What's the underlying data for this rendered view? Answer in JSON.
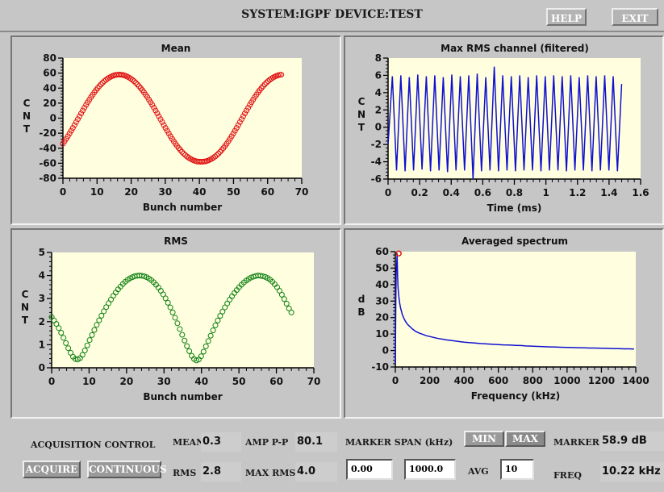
{
  "header": {
    "title": "SYSTEM:IGPF DEVICE:TEST",
    "help_label": "HELP",
    "exit_label": "EXIT"
  },
  "control": {
    "title": "ACQUISITION CONTROL",
    "acquire_label": "ACQUIRE",
    "continuous_label": "CONTINUOUS",
    "mean_label": "MEAN",
    "mean_value": "0.3",
    "rms_label": "RMS",
    "rms_value": "2.8",
    "amp_label": "AMP P-P",
    "amp_value": "80.1",
    "maxrms_label": "MAX RMS",
    "maxrms_value": "4.0",
    "span_label": "MARKER SPAN (kHz)",
    "span_min": "0.00",
    "span_max": "1000.0",
    "min_label": "MIN",
    "max_label": "MAX",
    "avg_label": "AVG",
    "avg_value": "10",
    "marker_label": "MARKER",
    "marker_value": "58.9 dB",
    "freq_label": "FREQ",
    "freq_value": "10.22 kHz"
  },
  "chart_data": [
    {
      "type": "scatter",
      "title": "Mean",
      "xlabel": "Bunch number",
      "ylabel": "C N T",
      "xlim": [
        0,
        70
      ],
      "ylim": [
        -80,
        80
      ],
      "xticks": [
        "0",
        "10",
        "20",
        "30",
        "40",
        "50",
        "60",
        "70"
      ],
      "yticks": [
        "80",
        "60",
        "40",
        "20",
        "0",
        "-20",
        "-40",
        "-60",
        "-80"
      ],
      "color": "#e01010",
      "x_range": [
        0,
        64
      ],
      "y": [
        -34.0,
        -30.8,
        -27.5,
        -24.0,
        -20.4,
        -16.8,
        -13.0,
        -9.2,
        -5.3,
        -1.4,
        2.5,
        6.4,
        10.2,
        14.0,
        17.7,
        21.2,
        24.7,
        28.1,
        31.3,
        34.4,
        37.3,
        40.0,
        42.6,
        45.0,
        47.2,
        49.2,
        51.0,
        52.6,
        54.0,
        55.2,
        56.2,
        57.0,
        57.6,
        57.9,
        58.0,
        57.9,
        57.6,
        57.0,
        56.2,
        55.2,
        54.0,
        52.6,
        51.0,
        49.2,
        47.2,
        45.0,
        42.6,
        40.0,
        37.3,
        34.4,
        31.3,
        28.1,
        24.7,
        21.2,
        17.7,
        14.0,
        10.2,
        6.4,
        2.5,
        -1.4,
        -5.3,
        -9.2,
        -13.0,
        -16.8,
        -20.4,
        -24.0,
        -27.5,
        -30.8,
        -34.0,
        -37.0,
        -39.8,
        -42.4,
        -44.9,
        -47.2,
        -49.2,
        -51.0,
        -52.6,
        -54.0,
        -55.2,
        -56.2,
        -57.0,
        -57.6,
        -57.9,
        -58.0,
        -58.0,
        -57.9,
        -57.6,
        -57.0,
        -56.2,
        -55.2,
        -54.0,
        -52.6,
        -51.0,
        -49.2,
        -47.2,
        -44.9,
        -42.4,
        -39.8,
        -37.0,
        -34.0,
        -30.8,
        -27.5,
        -24.0,
        -20.4,
        -16.8,
        -13.0,
        -9.2,
        -5.3,
        -1.4,
        2.5,
        6.4,
        10.2,
        14.0,
        17.7,
        21.2,
        24.7,
        28.1,
        31.3,
        34.4,
        37.3,
        40.0,
        42.6,
        45.0,
        47.2,
        49.2,
        51.0,
        52.6,
        54.0,
        55.2,
        56.2,
        57.0,
        57.6,
        57.9
      ]
    },
    {
      "type": "line",
      "title": "Max RMS channel (filtered)",
      "xlabel": "Time (ms)",
      "ylabel": "C N T",
      "xlim": [
        0,
        1.6
      ],
      "ylim": [
        -6,
        8
      ],
      "xticks": [
        "0",
        "0.2",
        "0.4",
        "0.6",
        "0.8",
        "1",
        "1.2",
        "1.4",
        "1.6"
      ],
      "yticks": [
        "8",
        "6",
        "4",
        "2",
        "0",
        "-2",
        "-4",
        "-6"
      ],
      "color": "#1010d0",
      "x_range": [
        0,
        1.48
      ],
      "y": [
        -2.0,
        5.9,
        -5.0,
        6.0,
        -5.1,
        5.8,
        -5.0,
        6.1,
        -4.9,
        5.9,
        -5.1,
        6.0,
        -5.0,
        5.8,
        -5.2,
        6.1,
        -5.0,
        5.9,
        -5.0,
        6.0,
        -6.0,
        6.2,
        -5.1,
        5.8,
        -5.0,
        7.0,
        -5.1,
        6.0,
        -5.0,
        5.9,
        -5.1,
        6.0,
        -5.0,
        5.8,
        -5.0,
        6.0,
        -5.1,
        5.9,
        -5.0,
        6.0,
        -5.0,
        5.9,
        -5.1,
        6.0,
        -5.0,
        5.8,
        -5.0,
        6.0,
        -5.1,
        5.9,
        -5.0,
        6.0,
        -5.0,
        5.9,
        -5.1,
        5.0
      ]
    },
    {
      "type": "scatter",
      "title": "RMS",
      "xlabel": "Bunch number",
      "ylabel": "C N T",
      "xlim": [
        0,
        70
      ],
      "ylim": [
        0,
        5
      ],
      "xticks": [
        "0",
        "10",
        "20",
        "30",
        "40",
        "50",
        "60",
        "70"
      ],
      "yticks": [
        "5",
        "4",
        "3",
        "2",
        "1",
        "0"
      ],
      "color": "#108010",
      "x_range": [
        0,
        64
      ],
      "y": [
        2.2,
        2.05,
        1.9,
        1.72,
        1.52,
        1.3,
        1.07,
        0.85,
        0.65,
        0.48,
        0.38,
        0.36,
        0.42,
        0.56,
        0.75,
        0.97,
        1.2,
        1.42,
        1.64,
        1.86,
        2.06,
        2.26,
        2.45,
        2.63,
        2.8,
        2.96,
        3.12,
        3.26,
        3.4,
        3.52,
        3.63,
        3.73,
        3.81,
        3.88,
        3.93,
        3.97,
        3.99,
        4.0,
        3.99,
        3.97,
        3.93,
        3.87,
        3.8,
        3.71,
        3.6,
        3.48,
        3.34,
        3.18,
        3.01,
        2.82,
        2.62,
        2.4,
        2.17,
        1.93,
        1.68,
        1.43,
        1.18,
        0.94,
        0.72,
        0.52,
        0.38,
        0.32,
        0.36,
        0.5,
        0.7,
        0.93,
        1.16,
        1.39,
        1.62,
        1.84,
        2.05,
        2.25,
        2.44,
        2.62,
        2.79,
        2.95,
        3.1,
        3.24,
        3.37,
        3.49,
        3.6,
        3.7,
        3.78,
        3.85,
        3.91,
        3.95,
        3.98,
        4.0,
        3.99,
        3.97,
        3.94,
        3.89,
        3.82,
        3.73,
        3.62,
        3.49,
        3.34,
        3.17,
        2.98,
        2.78,
        2.57,
        2.4
      ]
    },
    {
      "type": "line",
      "title": "Averaged spectrum",
      "xlabel": "Frequency (kHz)",
      "ylabel": "d B",
      "xlim": [
        0,
        1400
      ],
      "ylim": [
        -10,
        60
      ],
      "xticks": [
        "0",
        "200",
        "400",
        "600",
        "800",
        "1000",
        "1200",
        "1400"
      ],
      "yticks": [
        "60",
        "50",
        "40",
        "30",
        "20",
        "10",
        "0",
        "-10"
      ],
      "color": "#1010d0",
      "marker_point": [
        10.22,
        58.9
      ],
      "x": [
        0,
        3,
        5,
        8,
        10.22,
        13,
        16,
        20,
        25,
        30,
        35,
        40,
        50,
        60,
        70,
        80,
        90,
        100,
        120,
        140,
        160,
        180,
        200,
        220,
        250,
        280,
        300,
        330,
        360,
        400,
        430,
        460,
        500,
        530,
        560,
        600,
        630,
        660,
        700,
        730,
        760,
        800,
        830,
        860,
        900,
        930,
        960,
        1000,
        1030,
        1060,
        1100,
        1130,
        1160,
        1200,
        1230,
        1260,
        1300,
        1330,
        1360,
        1390
      ],
      "y": [
        -8,
        30,
        48,
        52,
        58.9,
        45,
        38,
        33,
        29,
        26,
        24,
        22,
        19.5,
        17.5,
        16,
        15,
        14,
        13,
        11.5,
        10.5,
        9.8,
        9,
        8.5,
        8,
        7.3,
        6.8,
        6.4,
        6,
        5.6,
        5.1,
        4.8,
        4.6,
        4.2,
        4,
        3.8,
        3.6,
        3.4,
        3.3,
        3.1,
        3,
        2.8,
        2.6,
        2.5,
        2.4,
        2.2,
        2.1,
        2,
        1.9,
        1.8,
        1.7,
        1.6,
        1.5,
        1.5,
        1.4,
        1.3,
        1.2,
        1.1,
        1.0,
        1.0,
        0.9
      ]
    }
  ]
}
